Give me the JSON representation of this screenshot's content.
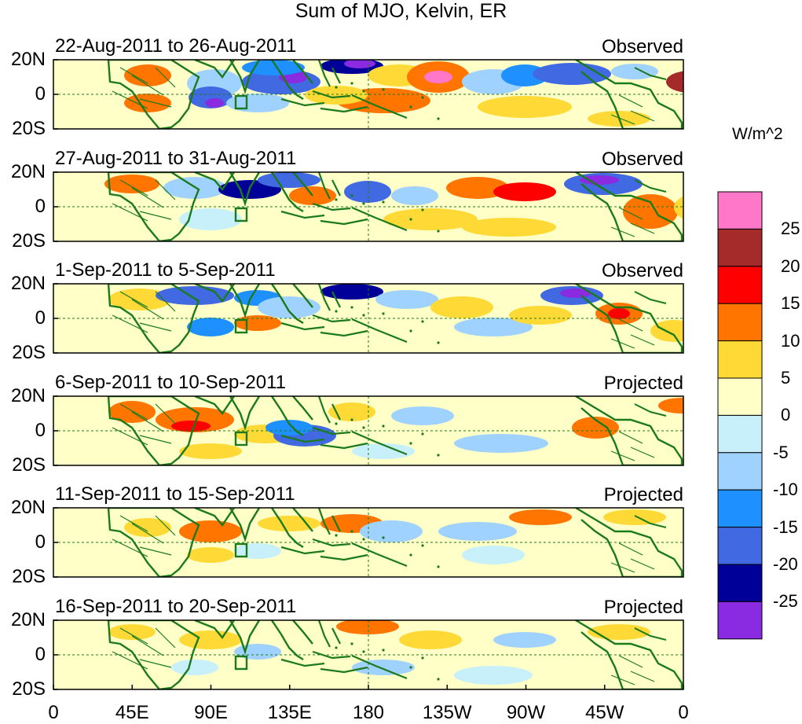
{
  "title": "Sum of MJO, Kelvin, ER",
  "lat_labels": [
    "20N",
    "0",
    "20S"
  ],
  "x_ticks": [
    "0",
    "45E",
    "90E",
    "135E",
    "180",
    "135W",
    "90W",
    "45W",
    "0"
  ],
  "colorbar": {
    "units": "W/m^2",
    "levels": [
      "25",
      "20",
      "15",
      "10",
      "5",
      "0",
      "-5",
      "-10",
      "-15",
      "-20",
      "-25"
    ],
    "colors": [
      "#ff77c8",
      "#a52a2a",
      "#ff0000",
      "#ff7500",
      "#ffd936",
      "#ffffc8",
      "#c8f0fa",
      "#a0d2ff",
      "#1e90ff",
      "#4169e1",
      "#000099",
      "#8a2be2"
    ]
  },
  "panels": [
    {
      "date_range": "22-Aug-2011 to 26-Aug-2011",
      "type": "Observed"
    },
    {
      "date_range": "27-Aug-2011 to 31-Aug-2011",
      "type": "Observed"
    },
    {
      "date_range": "1-Sep-2011 to 5-Sep-2011",
      "type": "Observed"
    },
    {
      "date_range": "6-Sep-2011 to 10-Sep-2011",
      "type": "Projected"
    },
    {
      "date_range": "11-Sep-2011 to 15-Sep-2011",
      "type": "Projected"
    },
    {
      "date_range": "16-Sep-2011 to 20-Sep-2011",
      "type": "Projected"
    }
  ]
}
